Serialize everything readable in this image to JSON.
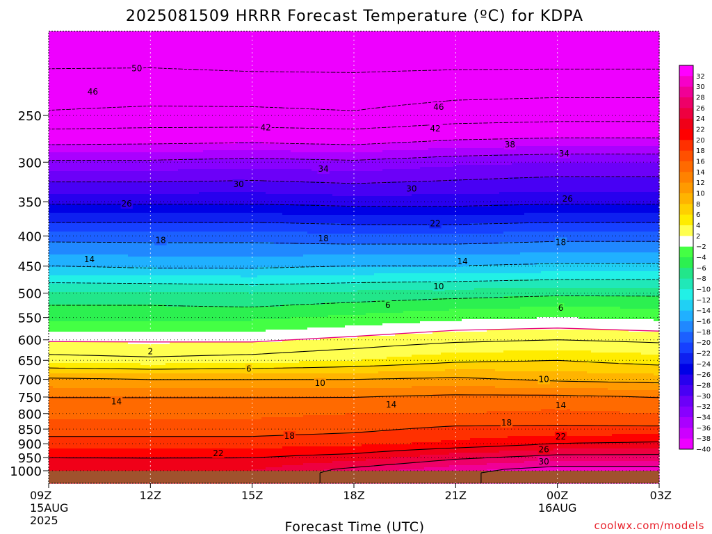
{
  "chart_data": {
    "type": "heatmap",
    "title": "2025081509 HRRR Forecast Temperature (ºC) for KDPA",
    "xlabel": "Forecast Time (UTC)",
    "ylabel": "",
    "credit": "coolwx.com/models",
    "y_scale": "log-pressure",
    "ylim": [
      1050,
      180
    ],
    "xlim": [
      0,
      18
    ],
    "x_ticks": [
      {
        "hour": 0,
        "label": "09Z",
        "sub": [
          "15AUG",
          "2025"
        ]
      },
      {
        "hour": 3,
        "label": "12Z",
        "sub": []
      },
      {
        "hour": 6,
        "label": "15Z",
        "sub": []
      },
      {
        "hour": 9,
        "label": "18Z",
        "sub": []
      },
      {
        "hour": 12,
        "label": "21Z",
        "sub": []
      },
      {
        "hour": 15,
        "label": "00Z",
        "sub": [
          "16AUG"
        ]
      },
      {
        "hour": 18,
        "label": "03Z",
        "sub": []
      }
    ],
    "y_ticks": [
      250,
      300,
      350,
      400,
      450,
      500,
      550,
      600,
      650,
      700,
      750,
      800,
      850,
      900,
      950,
      1000
    ],
    "grid": true,
    "legend_position": "right",
    "colorbar": {
      "labels": [
        "32",
        "30",
        "28",
        "26",
        "24",
        "22",
        "20",
        "18",
        "16",
        "14",
        "12",
        "10",
        "8",
        "6",
        "4",
        "2",
        "-2",
        "-4",
        "-6",
        "-8",
        "-10",
        "-12",
        "-14",
        "-16",
        "-18",
        "-20",
        "-22",
        "-24",
        "-26",
        "-28",
        "-30",
        "-32",
        "-34",
        "-36",
        "-38",
        "-40"
      ],
      "colors": [
        "#ff00ff",
        "#f600c8",
        "#f00096",
        "#ee0068",
        "#ee0040",
        "#f00018",
        "#ff0000",
        "#ff3000",
        "#ff5000",
        "#ff6a00",
        "#ff8200",
        "#ff9a00",
        "#ffb400",
        "#ffd000",
        "#ffec00",
        "#ffff50",
        "#ffffff",
        "#44ff44",
        "#2cf050",
        "#22e68a",
        "#20e8b8",
        "#22f0e6",
        "#20d0f4",
        "#20b0ff",
        "#2088ff",
        "#1c60ff",
        "#1640ff",
        "#0e20f0",
        "#0000e6",
        "#2800ee",
        "#4800f4",
        "#6c00f8",
        "#8800ff",
        "#aa00ff",
        "#cc00ff",
        "#ee00ff"
      ]
    },
    "ground_level_hpa": 1000,
    "ground_color": "#a0522d",
    "profile_pressures": [
      1000,
      950,
      900,
      850,
      800,
      750,
      700,
      650,
      600,
      550,
      500,
      450,
      400,
      350,
      300,
      250,
      200
    ],
    "profile_hours": [
      0,
      3,
      6,
      9,
      12,
      15,
      18
    ],
    "temperature_profiles": [
      [
        24.0,
        22.0,
        19.0,
        17.0,
        15.5,
        14.0,
        10.5,
        3.0,
        -0.5,
        -4.5,
        -7.5,
        -14.0,
        -19.0,
        -26.5,
        -33.5,
        -45.5,
        -51.0
      ],
      [
        23.5,
        22.0,
        19.0,
        17.0,
        15.5,
        14.0,
        10.0,
        2.5,
        -0.5,
        -4.5,
        -7.5,
        -14.5,
        -19.0,
        -26.5,
        -33.5,
        -45.0,
        -51.0
      ],
      [
        24.0,
        22.0,
        19.0,
        17.0,
        15.5,
        14.0,
        10.0,
        3.0,
        -0.5,
        -4.5,
        -8.0,
        -14.5,
        -19.0,
        -26.5,
        -33.0,
        -45.0,
        -51.5
      ],
      [
        27.0,
        23.0,
        19.5,
        17.5,
        16.0,
        14.0,
        10.0,
        4.0,
        0.5,
        -3.5,
        -7.5,
        -14.0,
        -19.5,
        -27.0,
        -33.5,
        -45.5,
        -51.5
      ],
      [
        29.5,
        25.5,
        20.5,
        18.5,
        16.0,
        14.5,
        10.5,
        5.5,
        1.5,
        -2.5,
        -7.0,
        -14.0,
        -19.5,
        -27.0,
        -32.5,
        -44.0,
        -51.5
      ],
      [
        31.5,
        27.0,
        22.0,
        18.5,
        16.5,
        14.5,
        9.5,
        6.0,
        2.0,
        -2.0,
        -6.5,
        -13.5,
        -19.0,
        -26.5,
        -32.0,
        -43.5,
        -51.5
      ],
      [
        31.5,
        27.0,
        22.5,
        18.5,
        16.0,
        14.0,
        9.0,
        5.0,
        1.5,
        -2.5,
        -6.5,
        -13.5,
        -19.0,
        -26.5,
        -32.0,
        -43.5,
        -51.5
      ]
    ],
    "contour_levels": [
      -50,
      -46,
      -42,
      -38,
      -34,
      -30,
      -26,
      -22,
      -18,
      -14,
      -10,
      -6,
      2,
      6,
      10,
      14,
      18,
      22,
      26,
      30
    ],
    "freezing_level_line": [
      {
        "hour": 0,
        "hpa": 604
      },
      {
        "hour": 3,
        "hpa": 605
      },
      {
        "hour": 6,
        "hpa": 605
      },
      {
        "hour": 9,
        "hpa": 592
      },
      {
        "hour": 12,
        "hpa": 578
      },
      {
        "hour": 15,
        "hpa": 573
      },
      {
        "hour": 18,
        "hpa": 580
      }
    ],
    "contour_labels": [
      {
        "text": "50",
        "hour": 2.6,
        "hpa": 208
      },
      {
        "text": "46",
        "hour": 1.3,
        "hpa": 228
      },
      {
        "text": "46",
        "hour": 11.5,
        "hpa": 242
      },
      {
        "text": "42",
        "hour": 6.4,
        "hpa": 262
      },
      {
        "text": "42",
        "hour": 11.4,
        "hpa": 263
      },
      {
        "text": "38",
        "hour": 13.6,
        "hpa": 280
      },
      {
        "text": "34",
        "hour": 8.1,
        "hpa": 308
      },
      {
        "text": "34",
        "hour": 15.2,
        "hpa": 290
      },
      {
        "text": "30",
        "hour": 5.6,
        "hpa": 327
      },
      {
        "text": "30",
        "hour": 10.7,
        "hpa": 333
      },
      {
        "text": "26",
        "hour": 2.3,
        "hpa": 353
      },
      {
        "text": "26",
        "hour": 15.3,
        "hpa": 346
      },
      {
        "text": "22",
        "hour": 11.4,
        "hpa": 381
      },
      {
        "text": "18",
        "hour": 3.3,
        "hpa": 407
      },
      {
        "text": "18",
        "hour": 8.1,
        "hpa": 404
      },
      {
        "text": "18",
        "hour": 15.1,
        "hpa": 410
      },
      {
        "text": "14",
        "hour": 1.2,
        "hpa": 438
      },
      {
        "text": "14",
        "hour": 12.2,
        "hpa": 442
      },
      {
        "text": "10",
        "hour": 11.5,
        "hpa": 487
      },
      {
        "text": "6",
        "hour": 10.0,
        "hpa": 524
      },
      {
        "text": "6",
        "hour": 15.1,
        "hpa": 530
      },
      {
        "text": "2",
        "hour": 3.0,
        "hpa": 628
      },
      {
        "text": "6",
        "hour": 5.9,
        "hpa": 672
      },
      {
        "text": "10",
        "hour": 8.0,
        "hpa": 710
      },
      {
        "text": "10",
        "hour": 14.6,
        "hpa": 700
      },
      {
        "text": "14",
        "hour": 2.0,
        "hpa": 763
      },
      {
        "text": "14",
        "hour": 10.1,
        "hpa": 773
      },
      {
        "text": "14",
        "hour": 15.1,
        "hpa": 775
      },
      {
        "text": "18",
        "hour": 7.1,
        "hpa": 873
      },
      {
        "text": "18",
        "hour": 13.5,
        "hpa": 829
      },
      {
        "text": "22",
        "hour": 5.0,
        "hpa": 934
      },
      {
        "text": "22",
        "hour": 15.1,
        "hpa": 875
      },
      {
        "text": "26",
        "hour": 14.6,
        "hpa": 920
      },
      {
        "text": "30",
        "hour": 14.6,
        "hpa": 965
      }
    ]
  }
}
